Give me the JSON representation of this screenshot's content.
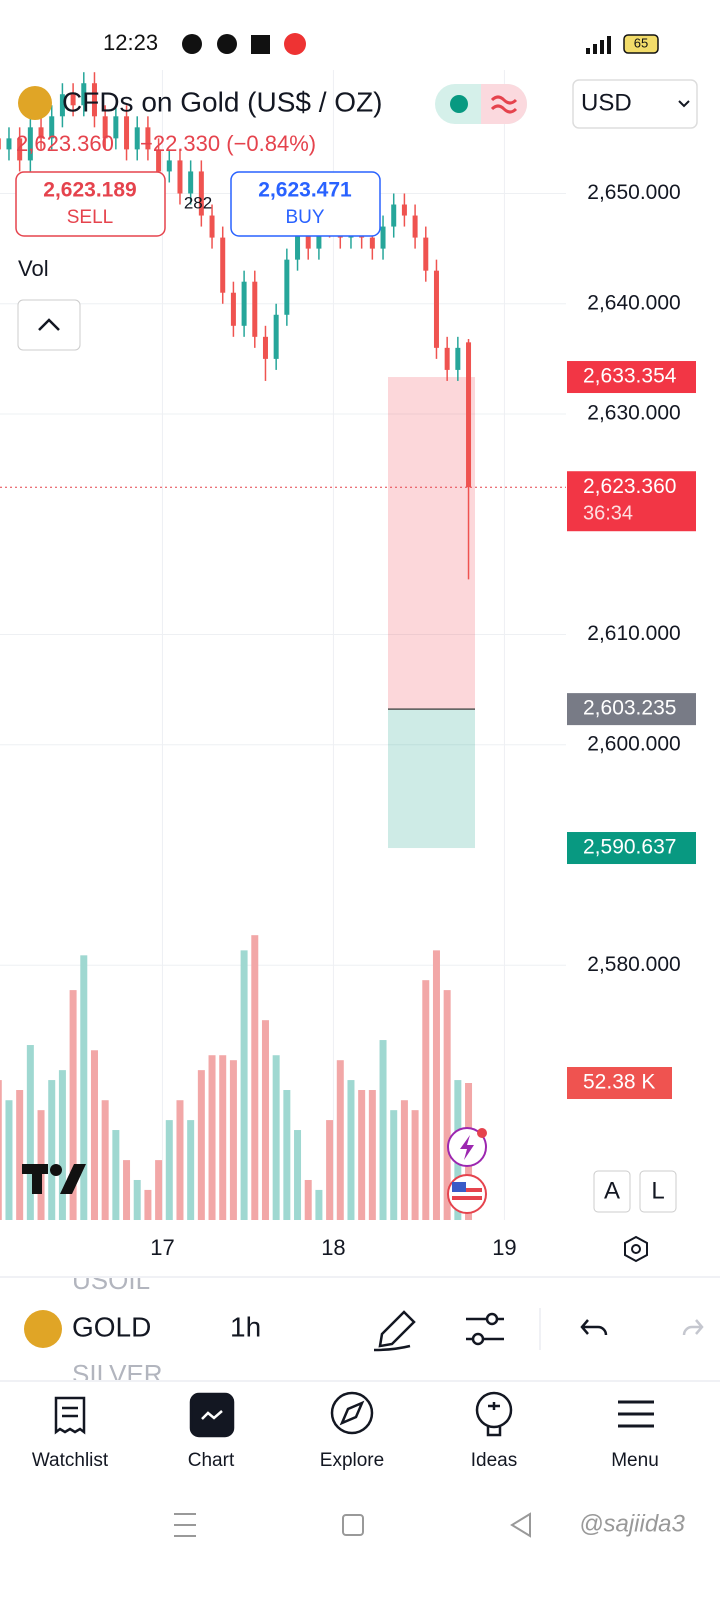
{
  "status_bar": {
    "time": "12:23",
    "battery": "65"
  },
  "header": {
    "title": "CFDs on Gold (US$ / OZ)",
    "currency": "USD",
    "last": "2,623.360",
    "change": "−22.330 (−0.84%)",
    "sell_price": "2,623.189",
    "sell": "SELL",
    "spread": "282",
    "buy_price": "2,623.471",
    "buy": "BUY",
    "volume_label": "Vol"
  },
  "chart": {
    "type": "candlestick",
    "x": [
      16.04,
      16.1025,
      16.165,
      16.2275,
      16.29,
      16.3525,
      16.415,
      16.4775,
      16.54,
      16.6025,
      16.665,
      16.7275,
      16.79,
      16.8525,
      16.915,
      16.9775,
      17.04,
      17.1025,
      17.165,
      17.2275,
      17.29,
      17.3525,
      17.415,
      17.4775,
      17.54,
      17.6025,
      17.665,
      17.7275,
      17.79,
      17.8525,
      17.915,
      17.9775,
      18.04,
      18.1025,
      18.165,
      18.2275,
      18.29,
      18.3525,
      18.415,
      18.4775,
      18.54,
      18.6025,
      18.665,
      18.7275,
      18.79
    ],
    "open": [
      2655,
      2654,
      2655,
      2653,
      2656,
      2655,
      2657,
      2659,
      2658,
      2660,
      2657,
      2655,
      2657,
      2654,
      2656,
      2654,
      2652,
      2653,
      2650,
      2652,
      2648,
      2646,
      2641,
      2638,
      2642,
      2637,
      2635,
      2639,
      2644,
      2647,
      2645,
      2648,
      2647,
      2646,
      2648,
      2646,
      2645,
      2647,
      2649,
      2648,
      2646,
      2643,
      2636,
      2634,
      2636.5
    ],
    "high": [
      2656,
      2656,
      2656,
      2657,
      2657,
      2658,
      2660,
      2660,
      2661,
      2661,
      2658,
      2658,
      2658,
      2657,
      2657,
      2655,
      2654,
      2654,
      2653,
      2653,
      2649,
      2647,
      2642,
      2643,
      2643,
      2638,
      2640,
      2645,
      2648,
      2648,
      2649,
      2649,
      2648,
      2649,
      2649,
      2647,
      2648,
      2650,
      2650,
      2649,
      2647,
      2644,
      2637,
      2637,
      2636.8
    ],
    "low": [
      2653,
      2653,
      2652,
      2652,
      2654,
      2654,
      2656,
      2657,
      2657,
      2656,
      2654,
      2654,
      2653,
      2653,
      2653,
      2651,
      2651,
      2649,
      2649,
      2647,
      2645,
      2640,
      2637,
      2637,
      2636,
      2633,
      2634,
      2638,
      2643,
      2644,
      2644,
      2646,
      2645,
      2645,
      2645,
      2644,
      2644,
      2646,
      2647,
      2645,
      2642,
      2635,
      2633,
      2633,
      2615
    ],
    "close": [
      2654,
      2655,
      2653,
      2656,
      2655,
      2657,
      2659,
      2658,
      2660,
      2657,
      2655,
      2657,
      2654,
      2656,
      2654,
      2652,
      2653,
      2650,
      2652,
      2648,
      2646,
      2641,
      2638,
      2642,
      2637,
      2635,
      2639,
      2644,
      2647,
      2645,
      2648,
      2647,
      2646,
      2648,
      2646,
      2645,
      2647,
      2649,
      2648,
      2646,
      2643,
      2636,
      2634,
      2636,
      2623.36
    ],
    "up_color": "#26a69a",
    "down_color": "#ef5350",
    "volume": {
      "values": [
        53.5,
        45.8,
        49.7,
        66.9,
        42.0,
        53.5,
        57.3,
        87.9,
        101.2,
        64.9,
        45.8,
        34.4,
        22.9,
        15.3,
        11.5,
        22.9,
        38.2,
        45.8,
        38.2,
        57.3,
        63.0,
        63.0,
        61.1,
        103.1,
        108.9,
        76.4,
        63.0,
        49.7,
        34.4,
        15.3,
        11.5,
        38.2,
        61.1,
        53.5,
        49.7,
        49.7,
        68.8,
        42.0,
        45.8,
        42.0,
        91.7,
        103.1,
        87.9,
        53.5,
        52.38
      ],
      "last_label": "52.38 K",
      "lim": [
        0,
        130
      ],
      "up_color": "#9fd8d1",
      "down_color": "#f2a7a7"
    },
    "xlim": [
      16.05,
      19.36
    ],
    "xticks": [
      17,
      18,
      19
    ],
    "ylim": [
      2556.9,
      2661.2
    ],
    "yticks": [
      {
        "value": 2650,
        "label": "2,650.000"
      },
      {
        "value": 2640,
        "label": "2,640.000"
      },
      {
        "value": 2630,
        "label": "2,630.000"
      },
      {
        "value": 2610,
        "label": "2,610.000"
      },
      {
        "value": 2600,
        "label": "2,600.000"
      },
      {
        "value": 2580,
        "label": "2,580.000"
      }
    ],
    "last_price": {
      "value": 2623.36,
      "label": "2,623.360",
      "countdown": "36:34"
    },
    "position": {
      "stop": {
        "value": 2633.354,
        "label": "2,633.354"
      },
      "entry": {
        "value": 2603.235,
        "label": "2,603.235"
      },
      "target": {
        "value": 2590.637,
        "label": "2,590.637"
      }
    },
    "scale_buttons": [
      "A",
      "L"
    ],
    "grid": true
  },
  "toolbar": {
    "symbols": [
      "USOIL",
      "GOLD",
      "SILVER"
    ],
    "interval": "1h"
  },
  "nav": [
    "Watchlist",
    "Chart",
    "Explore",
    "Ideas",
    "Menu"
  ],
  "watermark": "@sajiida3"
}
